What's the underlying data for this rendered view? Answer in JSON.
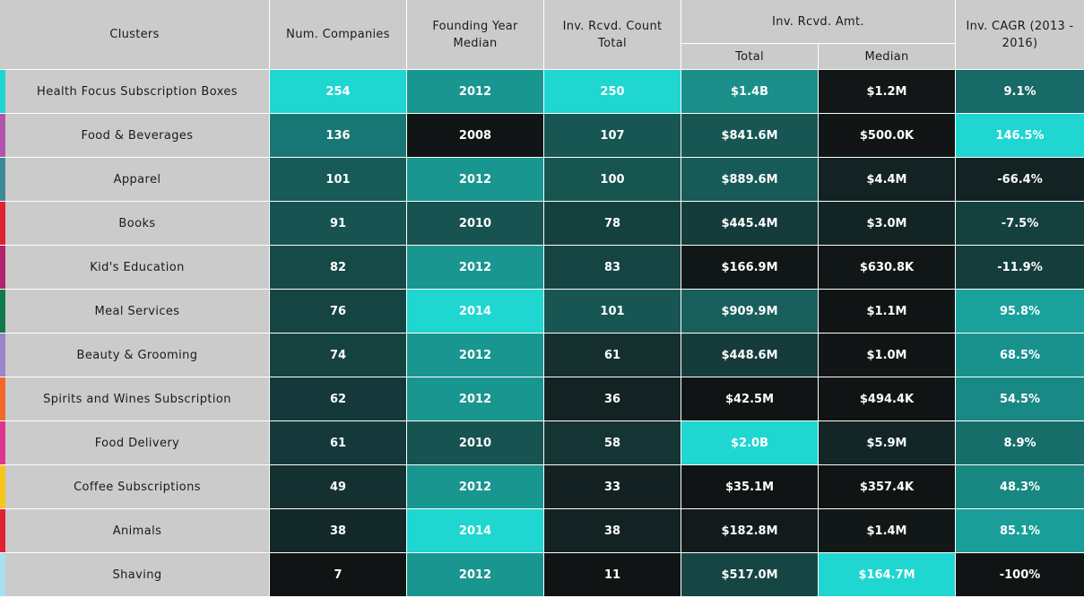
{
  "chart_data": {
    "type": "heatmap",
    "headers": {
      "clusters": "Clusters",
      "num_companies": "Num. Companies",
      "founding_year_median": "Founding Year\nMedian",
      "inv_count_total": "Inv. Rcvd. Count\nTotal",
      "inv_amt_group": "Inv. Rcvd. Amt.",
      "inv_amt_total": "Total",
      "inv_amt_median": "Median",
      "inv_cagr": "Inv. CAGR (2013 -\n2016)"
    },
    "rows": [
      {
        "cluster": "Health Focus Subscription Boxes",
        "marker_color": "#1fd6d1",
        "num_companies": 254,
        "founding_year_median": 2012,
        "inv_count_total": 250,
        "inv_amt_total": "$1.4B",
        "inv_amt_median": "$1.2M",
        "inv_cagr": "9.1%",
        "cell_colors": [
          "#1fd6d1",
          "#1a9690",
          "#1fd6d1",
          "#1a8f8a",
          "#121617",
          "#186a66"
        ]
      },
      {
        "cluster": "Food & Beverages",
        "marker_color": "#b256ad",
        "num_companies": 136,
        "founding_year_median": 2008,
        "inv_count_total": 107,
        "inv_amt_total": "$841.6M",
        "inv_amt_median": "$500.0K",
        "inv_cagr": "146.5%",
        "cell_colors": [
          "#187774",
          "#111515",
          "#175653",
          "#175653",
          "#111515",
          "#1fd6d1"
        ]
      },
      {
        "cluster": "Apparel",
        "marker_color": "#3d8a99",
        "num_companies": 101,
        "founding_year_median": 2012,
        "inv_count_total": 100,
        "inv_amt_total": "$889.6M",
        "inv_amt_median": "$4.4M",
        "inv_cagr": "-66.4%",
        "cell_colors": [
          "#175a57",
          "#1a9690",
          "#175551",
          "#175a57",
          "#132324",
          "#132324"
        ]
      },
      {
        "cluster": "Books",
        "marker_color": "#e02233",
        "num_companies": 91,
        "founding_year_median": 2010,
        "inv_count_total": 78,
        "inv_amt_total": "$445.4M",
        "inv_amt_median": "$3.0M",
        "inv_cagr": "-7.5%",
        "cell_colors": [
          "#175350",
          "#175350",
          "#14403e",
          "#153b3a",
          "#132425",
          "#14403e"
        ]
      },
      {
        "cluster": "Kid's Education",
        "marker_color": "#b12470",
        "num_companies": 82,
        "founding_year_median": 2012,
        "inv_count_total": 83,
        "inv_amt_total": "$166.9M",
        "inv_amt_median": "$630.8K",
        "inv_cagr": "-11.9%",
        "cell_colors": [
          "#164947",
          "#1a9690",
          "#164442",
          "#111616",
          "#111616",
          "#153d3c"
        ]
      },
      {
        "cluster": "Meal Services",
        "marker_color": "#117a4a",
        "num_companies": 76,
        "founding_year_median": 2014,
        "inv_count_total": 101,
        "inv_amt_total": "$909.9M",
        "inv_amt_median": "$1.1M",
        "inv_cagr": "95.8%",
        "cell_colors": [
          "#164443",
          "#1fd6d1",
          "#175653",
          "#185e5b",
          "#111515",
          "#1aa19c"
        ]
      },
      {
        "cluster": "Beauty & Grooming",
        "marker_color": "#9b84c7",
        "num_companies": 74,
        "founding_year_median": 2012,
        "inv_count_total": 61,
        "inv_amt_total": "$448.6M",
        "inv_amt_median": "$1.0M",
        "inv_cagr": "68.5%",
        "cell_colors": [
          "#164240",
          "#1a9690",
          "#15302f",
          "#153c3b",
          "#111515",
          "#19928e"
        ]
      },
      {
        "cluster": "Spirits and Wines Subscription",
        "marker_color": "#f2672a",
        "num_companies": 62,
        "founding_year_median": 2012,
        "inv_count_total": 36,
        "inv_amt_total": "$42.5M",
        "inv_amt_median": "$494.4K",
        "inv_cagr": "54.5%",
        "cell_colors": [
          "#15393a",
          "#1a9690",
          "#132223",
          "#111414",
          "#111414",
          "#198986"
        ]
      },
      {
        "cluster": "Food Delivery",
        "marker_color": "#df3592",
        "num_companies": 61,
        "founding_year_median": 2010,
        "inv_count_total": 58,
        "inv_amt_total": "$2.0B",
        "inv_amt_median": "$5.9M",
        "inv_cagr": "8.9%",
        "cell_colors": [
          "#15393a",
          "#175350",
          "#153534",
          "#1fd6d1",
          "#132526",
          "#176e69"
        ]
      },
      {
        "cluster": "Coffee Subscriptions",
        "marker_color": "#f8c61b",
        "num_companies": 49,
        "founding_year_median": 2012,
        "inv_count_total": 33,
        "inv_amt_total": "$35.1M",
        "inv_amt_median": "$357.4K",
        "inv_cagr": "48.3%",
        "cell_colors": [
          "#153030",
          "#1a9690",
          "#132122",
          "#111414",
          "#111414",
          "#188781"
        ]
      },
      {
        "cluster": "Animals",
        "marker_color": "#e02233",
        "num_companies": 38,
        "founding_year_median": 2014,
        "inv_count_total": 38,
        "inv_amt_total": "$182.8M",
        "inv_amt_median": "$1.4M",
        "inv_cagr": "85.1%",
        "cell_colors": [
          "#132828",
          "#1fd6d1",
          "#132323",
          "#121a1b",
          "#121818",
          "#1a9e99"
        ]
      },
      {
        "cluster": "Shaving",
        "marker_color": "#a8dff2",
        "num_companies": 7,
        "founding_year_median": 2012,
        "inv_count_total": 11,
        "inv_amt_total": "$517.0M",
        "inv_amt_median": "$164.7M",
        "inv_cagr": "-100%",
        "cell_colors": [
          "#111414",
          "#1a9690",
          "#111414",
          "#154644",
          "#1fd6d1",
          "#111414"
        ]
      }
    ]
  }
}
